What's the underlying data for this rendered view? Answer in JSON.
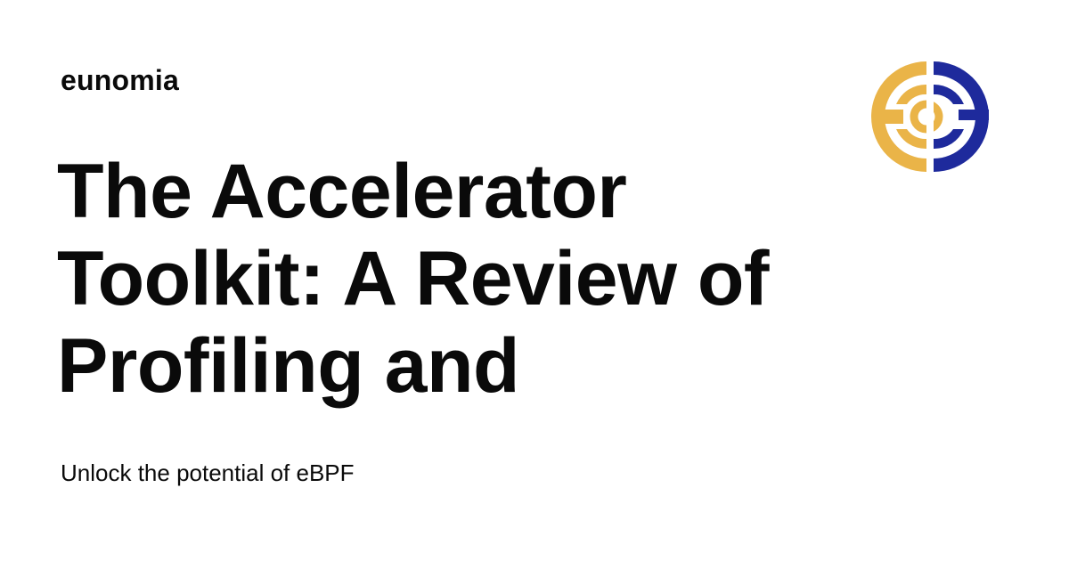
{
  "site": {
    "name": "eunomia"
  },
  "article": {
    "title_lines": [
      "The Accelerator",
      "Toolkit: A Review of",
      "Profiling and"
    ],
    "subtitle": "Unlock the potential of eBPF"
  },
  "logo": {
    "icon": "eunomia-logo-icon",
    "colors": {
      "gold": "#EAB448",
      "navy": "#1E2A9C"
    }
  }
}
